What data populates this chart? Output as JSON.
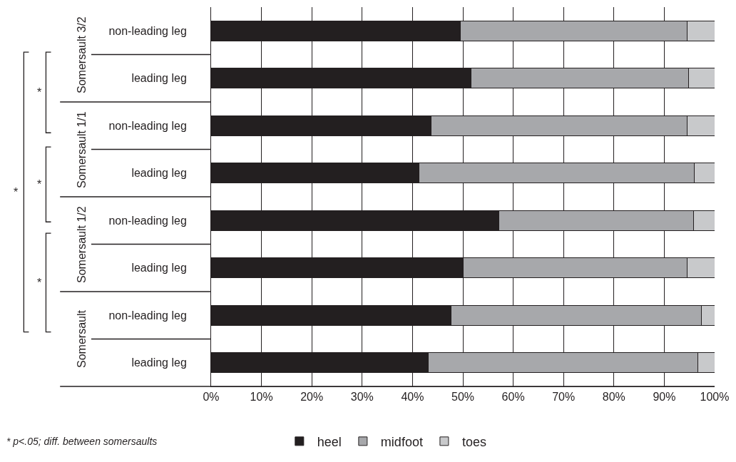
{
  "chart_data": {
    "type": "bar",
    "orientation": "horizontal",
    "stacked": true,
    "categories": [
      "non-leading leg",
      "leading leg",
      "non-leading leg",
      "leading leg",
      "non-leading leg",
      "leading leg",
      "non-leading leg",
      "leading leg"
    ],
    "series": [
      {
        "name": "heel",
        "color": "#231f20",
        "values": [
          49.5,
          51.6,
          43.7,
          41.3,
          57.2,
          50.0,
          47.7,
          43.1
        ]
      },
      {
        "name": "midfoot",
        "color": "#a7a8ab",
        "values": [
          45.1,
          43.2,
          50.9,
          54.6,
          38.6,
          44.5,
          49.7,
          53.5
        ]
      },
      {
        "name": "toes",
        "color": "#c8c9cb",
        "values": [
          5.4,
          5.2,
          5.4,
          4.1,
          4.2,
          5.5,
          2.6,
          3.4
        ]
      }
    ],
    "xlim": [
      0,
      100
    ],
    "xticks": [
      {
        "value": 0,
        "label": "0%"
      },
      {
        "value": 10,
        "label": "10%"
      },
      {
        "value": 20,
        "label": "20%"
      },
      {
        "value": 30,
        "label": "30%"
      },
      {
        "value": 40,
        "label": "40%"
      },
      {
        "value": 50,
        "label": "50%"
      },
      {
        "value": 60,
        "label": "60%"
      },
      {
        "value": 70,
        "label": "70%"
      },
      {
        "value": 80,
        "label": "80%"
      },
      {
        "value": 90,
        "label": "90%"
      },
      {
        "value": 100,
        "label": "100%"
      }
    ],
    "grid": "x",
    "legend": "bottom",
    "annotations": [
      "Somersault 3/2",
      "Somersault 1/1",
      "Somersault 1/2",
      "Somersault",
      "*",
      "*",
      "*",
      "*",
      "* p<.05; diff. between somersaults"
    ]
  }
}
